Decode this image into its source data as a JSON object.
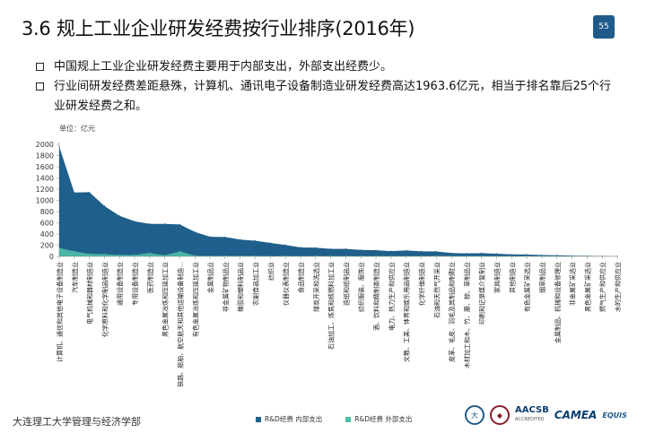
{
  "slide": {
    "title": "3.6  规上工业企业研发经费按行业排序(2016年)",
    "page_number": "55",
    "bullets": [
      "中国规上工业企业研发经费主要用于内部支出，外部支出经费少。",
      "行业间研发经费差距悬殊，计算机、通讯电子设备制造业研发经费高达1963.6亿元，相当于排名靠后25个行业研发经费之和。"
    ],
    "unit_label": "单位：亿元",
    "footer_text": "大连理工大学管理与经济学部",
    "logos": {
      "dut_text": "大",
      "aacsb_text": "AACSB",
      "aacsb_sub": "ACCREDITED",
      "camea_text": "CAMEA",
      "equis_text": "EQUIS"
    }
  },
  "chart_data": {
    "type": "area",
    "stacked": true,
    "title": "",
    "ylabel": "单位：亿元",
    "ylim": [
      0,
      2000
    ],
    "yticks": [
      0,
      200,
      400,
      600,
      800,
      1000,
      1200,
      1400,
      1600,
      1800,
      2000
    ],
    "categories": [
      "计算机、通信和其他电子设备制造业",
      "汽车制造业",
      "电气机械和器材制造业",
      "化学原料和化学制品制造业",
      "通用设备制造业",
      "专用设备制造业",
      "医药制造业",
      "黑色金属冶炼和压延加工业",
      "铁路、船舶、航空航天和其他运输设备制造...",
      "有色金属冶炼和压延加工业",
      "金属制品业",
      "非金属矿物制品业",
      "橡胶和塑料制品业",
      "农副食品加工业",
      "纺织业",
      "仪器仪表制造业",
      "食品制造业",
      "煤炭开采和洗选业",
      "石油加工、炼焦和核燃料加工业",
      "造纸和纸制品业",
      "纺织服装、服饰业",
      "酒、饮料和精制茶制造业",
      "电力、热力生产和供应业",
      "文教、工美、体育和娱乐用品制造业",
      "化学纤维制造业",
      "石油和天然气开采业",
      "皮革、毛皮、羽毛及其制品和制鞋业",
      "木材加工和木、竹、藤、棕、草制品业",
      "印刷和记录媒介复制业",
      "家具制造业",
      "其他制造业",
      "有色金属矿采选业",
      "烟草制品业",
      "金属制品、机械和设备修理业",
      "非金属矿采选业",
      "黑色金属矿采选业",
      "燃气生产和供应业",
      "水的生产和供应业"
    ],
    "series": [
      {
        "name": "R&D经费 内部支出",
        "color": "#1f5f8b",
        "values": [
          1810,
          1050,
          1100,
          860,
          700,
          600,
          520,
          560,
          480,
          420,
          340,
          335,
          290,
          270,
          235,
          195,
          155,
          145,
          130,
          130,
          110,
          105,
          90,
          100,
          85,
          78,
          58,
          52,
          55,
          45,
          35,
          30,
          22,
          18,
          12,
          8,
          6,
          4
        ]
      },
      {
        "name": "R&D经费 外部支出",
        "color": "#4fbfa8",
        "values": [
          150,
          90,
          45,
          40,
          25,
          25,
          60,
          20,
          90,
          15,
          10,
          10,
          10,
          10,
          5,
          10,
          5,
          10,
          5,
          5,
          5,
          5,
          5,
          5,
          5,
          10,
          3,
          3,
          3,
          3,
          2,
          3,
          2,
          2,
          1,
          1,
          1,
          1
        ]
      }
    ],
    "legend_position": "bottom"
  }
}
